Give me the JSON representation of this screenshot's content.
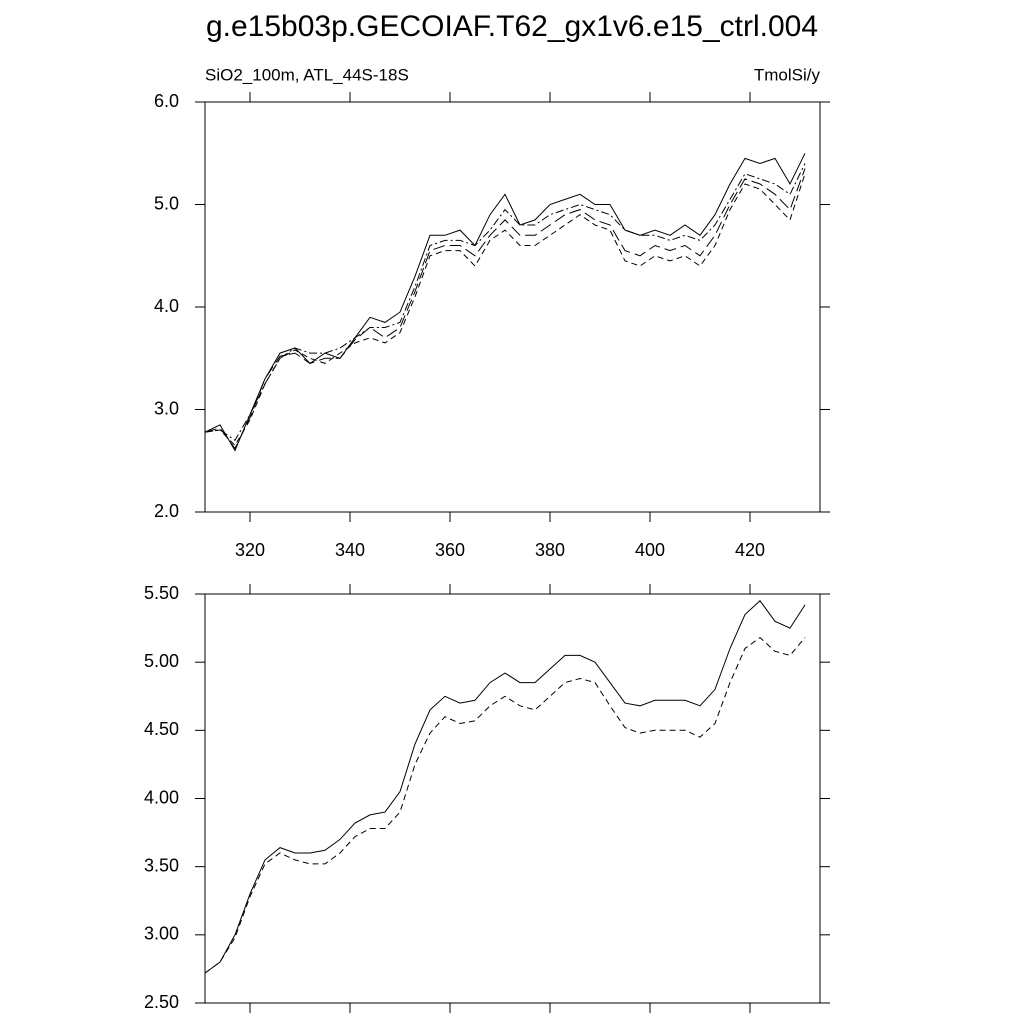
{
  "chart_data": [
    {
      "type": "line",
      "title": "g.e15b03p.GECOIAF.T62_gx1v6.e15_ctrl.004",
      "subtitle_left": "SiO2_100m, ATL_44S-18S",
      "subtitle_right": "TmolSi/y",
      "x": [
        311,
        314,
        317,
        320,
        323,
        326,
        329,
        332,
        335,
        338,
        341,
        344,
        347,
        350,
        353,
        356,
        359,
        362,
        365,
        368,
        371,
        374,
        377,
        380,
        383,
        386,
        389,
        392,
        395,
        398,
        401,
        404,
        407,
        410,
        413,
        416,
        419,
        422,
        425,
        428,
        431
      ],
      "xlim": [
        311,
        434
      ],
      "xticks": [
        320,
        340,
        360,
        380,
        400,
        420
      ],
      "ylim": [
        2,
        6
      ],
      "yticks": [
        {
          "value": 2,
          "label": "2.0"
        },
        {
          "value": 3,
          "label": "3.0"
        },
        {
          "value": 4,
          "label": "4.0"
        },
        {
          "value": 5,
          "label": "5.0"
        },
        {
          "value": 6,
          "label": "6.0"
        }
      ],
      "series": [
        {
          "color": "#000000",
          "dash": "none",
          "values": [
            2.78,
            2.85,
            2.6,
            2.95,
            3.3,
            3.55,
            3.6,
            3.45,
            3.55,
            3.5,
            3.7,
            3.9,
            3.85,
            3.95,
            4.3,
            4.7,
            4.7,
            4.75,
            4.6,
            4.9,
            5.1,
            4.8,
            4.85,
            5.0,
            5.05,
            5.1,
            5.0,
            5.0,
            4.75,
            4.7,
            4.75,
            4.7,
            4.8,
            4.7,
            4.9,
            5.2,
            5.45,
            5.4,
            5.45,
            5.2,
            5.5
          ]
        },
        {
          "color": "#000000",
          "dash": "6 4",
          "values": [
            2.78,
            2.8,
            2.65,
            2.9,
            3.25,
            3.5,
            3.58,
            3.5,
            3.45,
            3.55,
            3.65,
            3.7,
            3.65,
            3.75,
            4.1,
            4.5,
            4.55,
            4.55,
            4.4,
            4.65,
            4.75,
            4.6,
            4.6,
            4.7,
            4.8,
            4.9,
            4.8,
            4.75,
            4.45,
            4.4,
            4.5,
            4.45,
            4.5,
            4.4,
            4.6,
            4.95,
            5.2,
            5.15,
            5.0,
            4.85,
            5.3
          ]
        },
        {
          "color": "#000000",
          "dash": "8 3 2 3",
          "values": [
            2.78,
            2.8,
            2.7,
            2.95,
            3.25,
            3.5,
            3.6,
            3.55,
            3.55,
            3.6,
            3.7,
            3.8,
            3.8,
            3.85,
            4.2,
            4.6,
            4.65,
            4.65,
            4.6,
            4.75,
            4.95,
            4.8,
            4.8,
            4.9,
            4.95,
            5.0,
            4.95,
            4.9,
            4.75,
            4.7,
            4.7,
            4.65,
            4.7,
            4.65,
            4.8,
            5.05,
            5.3,
            5.25,
            5.2,
            5.1,
            5.4
          ]
        },
        {
          "color": "#000000",
          "dash": "12 5",
          "values": [
            2.78,
            2.82,
            2.62,
            2.92,
            3.3,
            3.52,
            3.55,
            3.45,
            3.5,
            3.5,
            3.68,
            3.8,
            3.7,
            3.8,
            4.15,
            4.55,
            4.6,
            4.6,
            4.5,
            4.7,
            4.85,
            4.7,
            4.7,
            4.8,
            4.9,
            4.95,
            4.85,
            4.8,
            4.55,
            4.5,
            4.6,
            4.55,
            4.6,
            4.5,
            4.7,
            5.0,
            5.25,
            5.2,
            5.1,
            4.95,
            5.35
          ]
        }
      ]
    },
    {
      "type": "line",
      "x": [
        311,
        314,
        317,
        320,
        323,
        326,
        329,
        332,
        335,
        338,
        341,
        344,
        347,
        350,
        353,
        356,
        359,
        362,
        365,
        368,
        371,
        374,
        377,
        380,
        383,
        386,
        389,
        392,
        395,
        398,
        401,
        404,
        407,
        410,
        413,
        416,
        419,
        422,
        425,
        428,
        431
      ],
      "xlim": [
        311,
        434
      ],
      "xticks": [
        320,
        340,
        360,
        380,
        400,
        420
      ],
      "ylim": [
        2.5,
        5.5
      ],
      "yticks": [
        {
          "value": 2.5,
          "label": "2.50"
        },
        {
          "value": 3,
          "label": "3.00"
        },
        {
          "value": 3.5,
          "label": "3.50"
        },
        {
          "value": 4,
          "label": "4.00"
        },
        {
          "value": 4.5,
          "label": "4.50"
        },
        {
          "value": 5,
          "label": "5.00"
        },
        {
          "value": 5.5,
          "label": "5.50"
        }
      ],
      "series": [
        {
          "color": "#000000",
          "dash": "none",
          "values": [
            2.72,
            2.8,
            3.0,
            3.3,
            3.55,
            3.64,
            3.6,
            3.6,
            3.62,
            3.7,
            3.82,
            3.88,
            3.9,
            4.05,
            4.4,
            4.65,
            4.75,
            4.7,
            4.72,
            4.85,
            4.92,
            4.85,
            4.85,
            4.95,
            5.05,
            5.05,
            5.0,
            4.85,
            4.7,
            4.68,
            4.72,
            4.72,
            4.72,
            4.68,
            4.8,
            5.1,
            5.35,
            5.45,
            5.3,
            5.25,
            5.42
          ]
        },
        {
          "color": "#000000",
          "dash": "6 4",
          "values": [
            2.72,
            2.8,
            2.98,
            3.28,
            3.52,
            3.6,
            3.55,
            3.52,
            3.52,
            3.6,
            3.72,
            3.78,
            3.78,
            3.9,
            4.25,
            4.48,
            4.6,
            4.55,
            4.57,
            4.68,
            4.75,
            4.68,
            4.65,
            4.75,
            4.85,
            4.88,
            4.85,
            4.68,
            4.52,
            4.48,
            4.5,
            4.5,
            4.5,
            4.45,
            4.55,
            4.85,
            5.1,
            5.18,
            5.08,
            5.05,
            5.18
          ]
        }
      ]
    }
  ]
}
